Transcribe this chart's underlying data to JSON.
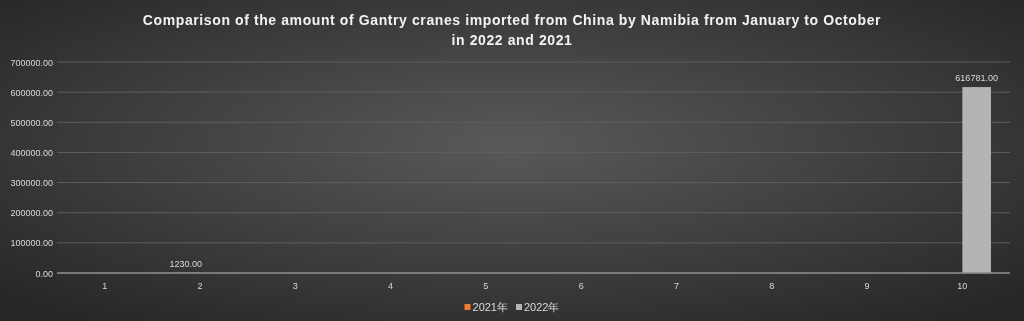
{
  "chart_data": {
    "type": "bar",
    "title": "Comparison of the amount of Gantry cranes imported from China by Namibia from January to October in 2022 and 2021",
    "categories": [
      "1",
      "2",
      "3",
      "4",
      "5",
      "6",
      "7",
      "8",
      "9",
      "10"
    ],
    "series": [
      {
        "name": "2021年",
        "color": "#ed7d31",
        "values": [
          0,
          1230,
          0,
          0,
          0,
          0,
          0,
          0,
          0,
          0
        ],
        "value_labels": [
          null,
          "1230.00",
          null,
          null,
          null,
          null,
          null,
          null,
          null,
          null
        ]
      },
      {
        "name": "2022年",
        "color": "#b4b4b4",
        "values": [
          0,
          0,
          0,
          0,
          0,
          0,
          0,
          0,
          0,
          616781
        ],
        "value_labels": [
          null,
          null,
          null,
          null,
          null,
          null,
          null,
          null,
          null,
          "616781.00"
        ]
      }
    ],
    "ylim": [
      0,
      700000
    ],
    "yticks": [
      {
        "value": 0,
        "label": "0.00"
      },
      {
        "value": 100000,
        "label": "100000.00"
      },
      {
        "value": 200000,
        "label": "200000.00"
      },
      {
        "value": 300000,
        "label": "300000.00"
      },
      {
        "value": 400000,
        "label": "400000.00"
      },
      {
        "value": 500000,
        "label": "500000.00"
      },
      {
        "value": 600000,
        "label": "600000.00"
      },
      {
        "value": 700000,
        "label": "700000.00"
      }
    ],
    "grid": "y",
    "legend": "bottom"
  }
}
